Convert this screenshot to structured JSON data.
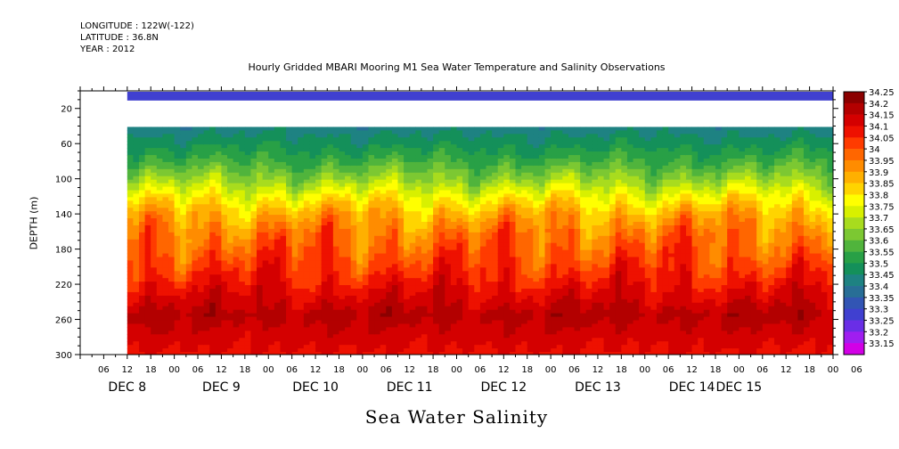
{
  "header": {
    "longitude": "LONGITUDE : 122W(-122)",
    "latitude": "LATITUDE : 36.8N",
    "year": "YEAR : 2012"
  },
  "chart_data": {
    "type": "heatmap",
    "title": "Hourly Gridded MBARI Mooring M1 Sea Water Temperature and Salinity Observations",
    "xlabel": "Sea Water Salinity",
    "ylabel": "DEPTH (m)",
    "x_range_hours": [
      0,
      192
    ],
    "x_hour_ticks": [
      "06",
      "12",
      "18",
      "00",
      "06",
      "12",
      "18",
      "00",
      "06",
      "12",
      "18",
      "00",
      "06",
      "12",
      "18",
      "00",
      "06",
      "12",
      "18",
      "00",
      "06",
      "12",
      "18",
      "00",
      "06",
      "12",
      "18",
      "00",
      "06",
      "12",
      "18",
      "00",
      "06"
    ],
    "date_labels": [
      {
        "label": "DEC  8",
        "hour": 12
      },
      {
        "label": "DEC  9",
        "hour": 36
      },
      {
        "label": "DEC 10",
        "hour": 60
      },
      {
        "label": "DEC 11",
        "hour": 84
      },
      {
        "label": "DEC 12",
        "hour": 108
      },
      {
        "label": "DEC 13",
        "hour": 132
      },
      {
        "label": "DEC 14",
        "hour": 156
      },
      {
        "label": "DEC 15",
        "hour": 168
      }
    ],
    "y_range": [
      300,
      0
    ],
    "y_ticks": [
      20,
      60,
      100,
      140,
      180,
      220,
      260,
      300
    ],
    "data_start_hour": 12,
    "surface_band": {
      "depth_top": 1,
      "depth_bottom": 11,
      "salinity": 33.32
    },
    "missing_band": {
      "depth_top": 11,
      "depth_bottom": 41
    },
    "profile": [
      {
        "depth": 41,
        "salinity": 33.47
      },
      {
        "depth": 60,
        "salinity": 33.53
      },
      {
        "depth": 80,
        "salinity": 33.6
      },
      {
        "depth": 100,
        "salinity": 33.7
      },
      {
        "depth": 120,
        "salinity": 33.82
      },
      {
        "depth": 140,
        "salinity": 33.93
      },
      {
        "depth": 160,
        "salinity": 34.0
      },
      {
        "depth": 180,
        "salinity": 34.04
      },
      {
        "depth": 200,
        "salinity": 34.08
      },
      {
        "depth": 220,
        "salinity": 34.13
      },
      {
        "depth": 240,
        "salinity": 34.18
      },
      {
        "depth": 255,
        "salinity": 34.22
      },
      {
        "depth": 275,
        "salinity": 34.18
      },
      {
        "depth": 300,
        "salinity": 34.14
      }
    ],
    "colorbar": {
      "levels": [
        "34.25",
        "34.2",
        "34.15",
        "34.1",
        "34.05",
        "34",
        "33.95",
        "33.9",
        "33.85",
        "33.8",
        "33.75",
        "33.7",
        "33.65",
        "33.6",
        "33.55",
        "33.5",
        "33.45",
        "33.4",
        "33.35",
        "33.3",
        "33.25",
        "33.2",
        "33.15"
      ],
      "colors": [
        "#8b0000",
        "#b30000",
        "#d40000",
        "#ee1100",
        "#ff3b00",
        "#ff6600",
        "#ff8c00",
        "#ffb000",
        "#ffd400",
        "#ffff00",
        "#d8f000",
        "#a8dc1e",
        "#7cc832",
        "#50b43c",
        "#28a046",
        "#14905a",
        "#1e8282",
        "#286e96",
        "#3255b4",
        "#4040d0",
        "#6a2ee6",
        "#a01ef0",
        "#d200e6"
      ]
    }
  }
}
